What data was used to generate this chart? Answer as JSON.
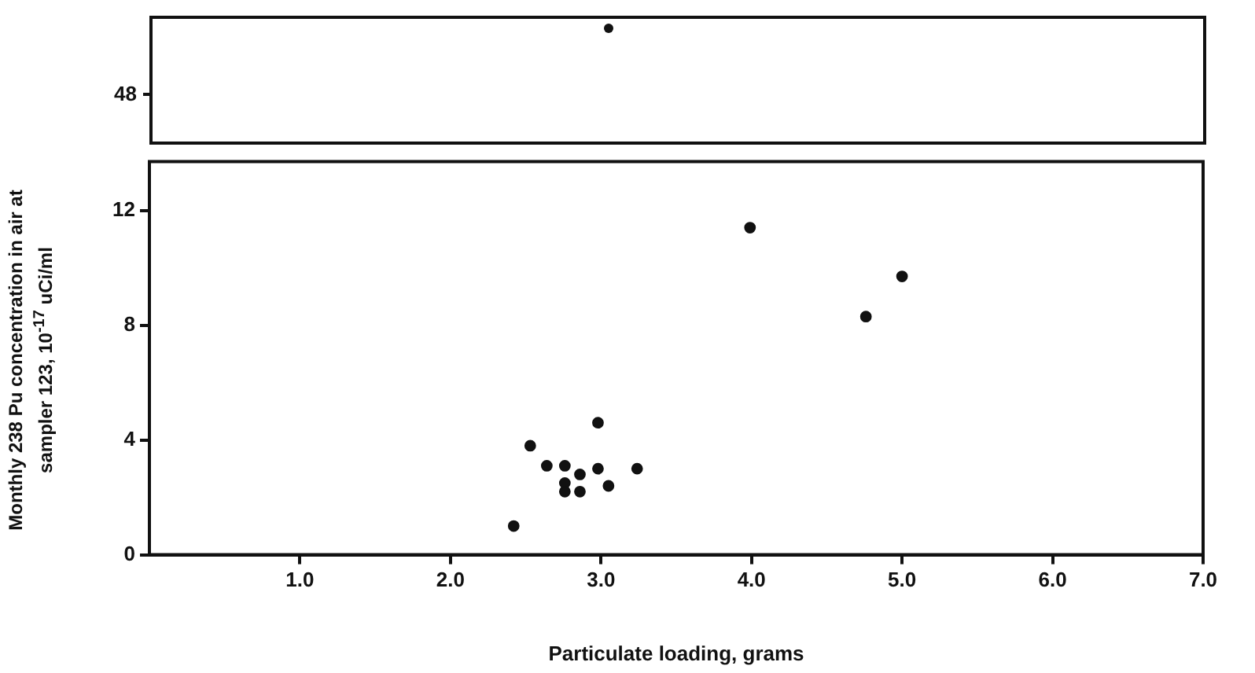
{
  "chart_data": [
    {
      "type": "other",
      "annotations": [
        "48"
      ]
    },
    {
      "type": "scatter",
      "xlim": [
        0,
        7
      ],
      "ylim": [
        0,
        13.7
      ],
      "yticks": [
        0,
        4,
        8,
        12
      ],
      "xticks": [
        {
          "value": 1,
          "label": "1.0"
        },
        {
          "value": 2,
          "label": "2.0"
        },
        {
          "value": 3,
          "label": "3.0"
        },
        {
          "value": 4,
          "label": "4.0"
        },
        {
          "value": 5,
          "label": "5.0"
        },
        {
          "value": 6,
          "label": "6.0"
        },
        {
          "value": 7,
          "label": "7.0"
        }
      ],
      "xlabel": "Particulate loading, grams",
      "ylabel": "Monthly 238 Pu concentration in air at sampler 123, 10$^{-17}$ uCi/ml",
      "marker": "circle",
      "grid": false,
      "series": [
        {
          "color": "#111111",
          "x": [
            2.42,
            2.53,
            2.64,
            2.76,
            2.76,
            2.76,
            2.86,
            2.86,
            2.98,
            2.98,
            3.05,
            3.24,
            3.99,
            4.76,
            5.0
          ],
          "values": [
            1.0,
            3.8,
            3.1,
            3.1,
            2.5,
            2.2,
            2.8,
            2.2,
            4.6,
            3.0,
            2.4,
            3.0,
            11.4,
            8.3,
            9.7
          ]
        }
      ]
    }
  ]
}
